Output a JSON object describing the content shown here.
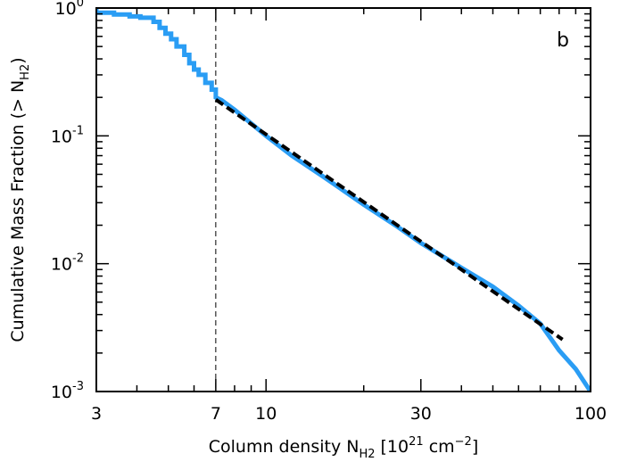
{
  "chart_data": {
    "type": "line",
    "panel_label": "b",
    "xlabel": {
      "main": "Column density N",
      "sub": "H2",
      "units": "[10",
      "units_exp": "21",
      "units_mid": " cm",
      "units_exp2": "−2",
      "units_end": "]"
    },
    "ylabel": {
      "main": "Cumulative Mass Fraction (> N",
      "sub": "H2",
      "end": ")"
    },
    "x_scale": "log",
    "y_scale": "log",
    "xlim": [
      3,
      100
    ],
    "ylim": [
      0.001,
      1
    ],
    "x_ticks": [
      {
        "value": 3,
        "label": "3"
      },
      {
        "value": 7,
        "label": "7"
      },
      {
        "value": 10,
        "label": "10"
      },
      {
        "value": 30,
        "label": "30"
      },
      {
        "value": 100,
        "label": "100"
      }
    ],
    "y_ticks": [
      {
        "value": 1,
        "base": "10",
        "exp": "0"
      },
      {
        "value": 0.1,
        "base": "10",
        "exp": "-1"
      },
      {
        "value": 0.01,
        "base": "10",
        "exp": "-2"
      },
      {
        "value": 0.001,
        "base": "10",
        "exp": "-3"
      }
    ],
    "threshold_x": 7,
    "series": [
      {
        "style": "step",
        "color": "#2a9df4",
        "points": [
          [
            3.0,
            1.0
          ],
          [
            3.0,
            0.92
          ],
          [
            3.4,
            0.92
          ],
          [
            3.4,
            0.89
          ],
          [
            3.8,
            0.89
          ],
          [
            3.8,
            0.86
          ],
          [
            4.1,
            0.86
          ],
          [
            4.1,
            0.84
          ],
          [
            4.5,
            0.84
          ],
          [
            4.5,
            0.78
          ],
          [
            4.7,
            0.78
          ],
          [
            4.7,
            0.7
          ],
          [
            4.9,
            0.7
          ],
          [
            4.9,
            0.63
          ],
          [
            5.1,
            0.63
          ],
          [
            5.1,
            0.57
          ],
          [
            5.3,
            0.57
          ],
          [
            5.3,
            0.5
          ],
          [
            5.6,
            0.5
          ],
          [
            5.6,
            0.43
          ],
          [
            5.8,
            0.43
          ],
          [
            5.8,
            0.37
          ],
          [
            6.0,
            0.37
          ],
          [
            6.0,
            0.33
          ],
          [
            6.2,
            0.33
          ],
          [
            6.2,
            0.3
          ],
          [
            6.5,
            0.3
          ],
          [
            6.5,
            0.26
          ],
          [
            6.8,
            0.26
          ],
          [
            6.8,
            0.23
          ],
          [
            7.0,
            0.23
          ],
          [
            7.0,
            0.2
          ],
          [
            7.3,
            0.19
          ],
          [
            8.0,
            0.16
          ],
          [
            9.0,
            0.125
          ],
          [
            10.0,
            0.1
          ],
          [
            12.0,
            0.07
          ],
          [
            15.0,
            0.048
          ],
          [
            20.0,
            0.029
          ],
          [
            25.0,
            0.02
          ],
          [
            30.0,
            0.0145
          ],
          [
            40.0,
            0.0093
          ],
          [
            50.0,
            0.0066
          ],
          [
            60.0,
            0.0047
          ],
          [
            70.0,
            0.0034
          ],
          [
            80.0,
            0.0021
          ],
          [
            90.0,
            0.0015
          ],
          [
            100.0,
            0.001
          ]
        ]
      },
      {
        "style": "dashed",
        "color": "#000000",
        "points": [
          [
            7.0,
            0.192
          ],
          [
            82.0,
            0.00255
          ]
        ]
      }
    ]
  }
}
